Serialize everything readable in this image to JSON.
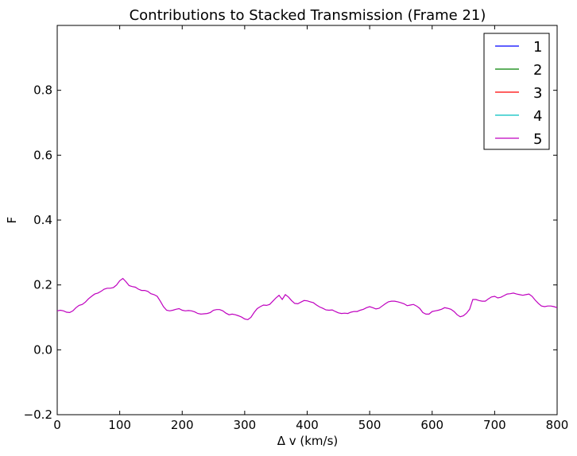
{
  "chart_data": {
    "type": "line",
    "title": "Contributions to Stacked Transmission (Frame 21)",
    "xlabel": "Δ v (km/s)",
    "ylabel": "F",
    "xlim": [
      0,
      800
    ],
    "ylim": [
      -0.2,
      1.0
    ],
    "x_ticks": [
      0,
      100,
      200,
      300,
      400,
      500,
      600,
      700,
      800
    ],
    "y_ticks": [
      -0.2,
      0.0,
      0.2,
      0.4,
      0.6,
      0.8
    ],
    "legend_position": "top-right",
    "grid": false,
    "series": [
      {
        "name": "1",
        "color": "#0000ff",
        "x": [],
        "y": []
      },
      {
        "name": "2",
        "color": "#008000",
        "x": [],
        "y": []
      },
      {
        "name": "3",
        "color": "#ff0000",
        "x": [],
        "y": []
      },
      {
        "name": "4",
        "color": "#00bfbf",
        "x": [],
        "y": []
      },
      {
        "name": "5",
        "color": "#bf00bf",
        "x": [
          0,
          5,
          10,
          15,
          20,
          25,
          30,
          35,
          40,
          45,
          50,
          55,
          60,
          65,
          70,
          75,
          80,
          85,
          90,
          95,
          100,
          105,
          110,
          115,
          120,
          125,
          130,
          135,
          140,
          145,
          150,
          155,
          160,
          165,
          170,
          175,
          180,
          185,
          190,
          195,
          200,
          205,
          210,
          215,
          220,
          225,
          230,
          235,
          240,
          245,
          250,
          255,
          260,
          265,
          270,
          275,
          280,
          285,
          290,
          295,
          300,
          305,
          310,
          315,
          320,
          325,
          330,
          335,
          340,
          345,
          350,
          355,
          360,
          365,
          370,
          375,
          380,
          385,
          390,
          395,
          400,
          405,
          410,
          415,
          420,
          425,
          430,
          435,
          440,
          445,
          450,
          455,
          460,
          465,
          470,
          475,
          480,
          485,
          490,
          495,
          500,
          505,
          510,
          515,
          520,
          525,
          530,
          535,
          540,
          545,
          550,
          555,
          560,
          565,
          570,
          575,
          580,
          585,
          590,
          595,
          600,
          605,
          610,
          615,
          620,
          625,
          630,
          635,
          640,
          645,
          650,
          655,
          660,
          665,
          670,
          675,
          680,
          685,
          690,
          695,
          700,
          705,
          710,
          715,
          720,
          725,
          730,
          735,
          740,
          745,
          750,
          755,
          760,
          765,
          770,
          775,
          780,
          785,
          790,
          795,
          800
        ],
        "y": [
          0.12,
          0.122,
          0.12,
          0.116,
          0.115,
          0.12,
          0.13,
          0.137,
          0.14,
          0.147,
          0.157,
          0.165,
          0.172,
          0.175,
          0.18,
          0.187,
          0.19,
          0.19,
          0.192,
          0.2,
          0.213,
          0.22,
          0.21,
          0.198,
          0.195,
          0.193,
          0.187,
          0.183,
          0.183,
          0.18,
          0.173,
          0.17,
          0.165,
          0.15,
          0.133,
          0.122,
          0.12,
          0.122,
          0.125,
          0.127,
          0.122,
          0.12,
          0.121,
          0.12,
          0.117,
          0.112,
          0.11,
          0.111,
          0.112,
          0.115,
          0.122,
          0.124,
          0.124,
          0.12,
          0.113,
          0.108,
          0.11,
          0.108,
          0.105,
          0.101,
          0.095,
          0.093,
          0.1,
          0.115,
          0.127,
          0.133,
          0.138,
          0.137,
          0.14,
          0.15,
          0.16,
          0.168,
          0.155,
          0.17,
          0.163,
          0.152,
          0.143,
          0.142,
          0.147,
          0.152,
          0.151,
          0.148,
          0.145,
          0.138,
          0.132,
          0.128,
          0.123,
          0.122,
          0.123,
          0.118,
          0.114,
          0.112,
          0.113,
          0.112,
          0.116,
          0.118,
          0.118,
          0.122,
          0.125,
          0.13,
          0.133,
          0.13,
          0.126,
          0.128,
          0.135,
          0.142,
          0.148,
          0.15,
          0.15,
          0.148,
          0.145,
          0.142,
          0.136,
          0.138,
          0.14,
          0.135,
          0.128,
          0.115,
          0.11,
          0.11,
          0.118,
          0.12,
          0.122,
          0.125,
          0.13,
          0.128,
          0.125,
          0.118,
          0.108,
          0.102,
          0.105,
          0.113,
          0.125,
          0.155,
          0.155,
          0.152,
          0.15,
          0.15,
          0.157,
          0.163,
          0.165,
          0.16,
          0.162,
          0.167,
          0.172,
          0.173,
          0.175,
          0.172,
          0.17,
          0.168,
          0.17,
          0.172,
          0.165,
          0.153,
          0.143,
          0.135,
          0.133,
          0.135,
          0.135,
          0.133,
          0.13
        ]
      }
    ]
  }
}
